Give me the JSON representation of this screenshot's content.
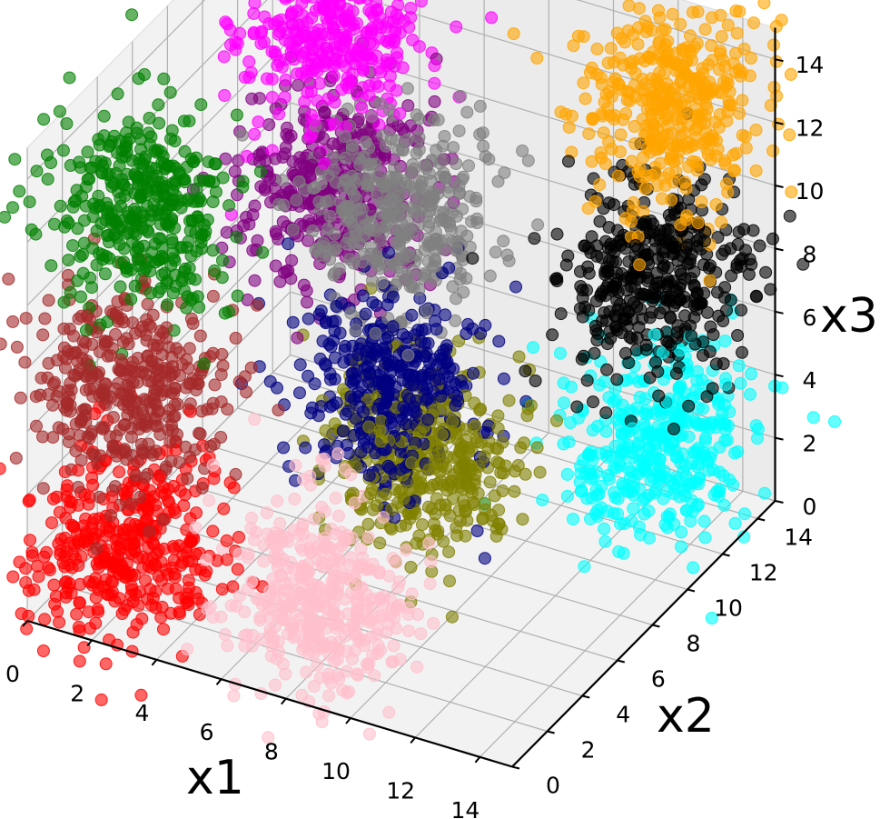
{
  "chart_data": {
    "type": "scatter",
    "projection": "3d",
    "title": "",
    "xlabel": "x1",
    "ylabel": "x2",
    "zlabel": "x3",
    "xlim": [
      0,
      15
    ],
    "ylim": [
      0,
      15
    ],
    "zlim": [
      0,
      15
    ],
    "x_ticks": [
      0,
      2,
      4,
      6,
      8,
      10,
      12,
      14
    ],
    "y_ticks": [
      0,
      2,
      4,
      6,
      8,
      10,
      12,
      14
    ],
    "z_ticks": [
      0,
      2,
      4,
      6,
      8,
      10,
      12,
      14
    ],
    "grid": true,
    "legend": "none",
    "points_per_cluster": 400,
    "cluster_spread": 1.3,
    "marker_alpha": 0.6,
    "clusters": [
      {
        "color": "#ff00ff",
        "center": [
          3,
          12,
          13
        ]
      },
      {
        "color": "#008000",
        "center": [
          2,
          3,
          12
        ]
      },
      {
        "color": "#800080",
        "center": [
          3,
          12,
          8
        ]
      },
      {
        "color": "#000080",
        "center": [
          7,
          8,
          5
        ]
      },
      {
        "color": "#808080",
        "center": [
          6,
          10,
          9
        ]
      },
      {
        "color": "#ffa500",
        "center": [
          13,
          13,
          13
        ]
      },
      {
        "color": "#000000",
        "center": [
          13,
          12,
          8
        ]
      },
      {
        "color": "#a52a2a",
        "center": [
          2,
          2,
          7
        ]
      },
      {
        "color": "#ff0000",
        "center": [
          2,
          2,
          2
        ]
      },
      {
        "color": "#808000",
        "center": [
          8,
          8,
          3
        ]
      },
      {
        "color": "#ffc0cb",
        "center": [
          8,
          2,
          2
        ]
      },
      {
        "color": "#00ffff",
        "center": [
          13,
          12,
          3
        ]
      }
    ]
  }
}
